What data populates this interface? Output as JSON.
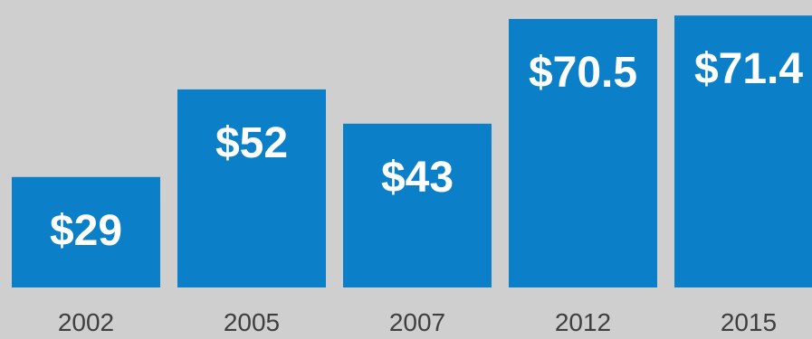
{
  "chart_data": {
    "type": "bar",
    "categories": [
      "2002",
      "2005",
      "2007",
      "2012",
      "2015"
    ],
    "values": [
      29,
      52,
      43,
      70.5,
      71.4
    ],
    "value_labels": [
      "$29",
      "$52",
      "$43",
      "$70.5",
      "$71.4"
    ],
    "title": "",
    "xlabel": "",
    "ylabel": "",
    "ylim": [
      0,
      75
    ],
    "grid": false,
    "legend": "none",
    "colors": {
      "bar": "#0b80c9",
      "background": "#cfcfcf",
      "value_text": "#ffffff",
      "tick_text": "#3f3f3f"
    }
  }
}
